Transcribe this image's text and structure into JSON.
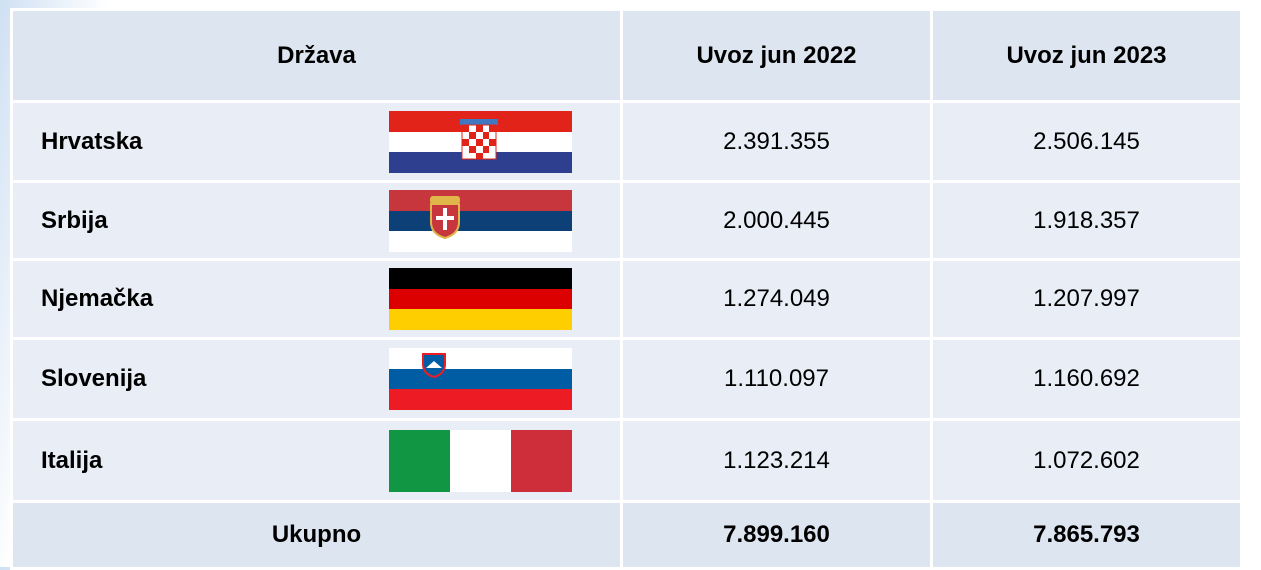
{
  "table": {
    "header": [
      "Država",
      "Uvoz jun 2022",
      "Uvoz jun 2023"
    ],
    "rows": [
      [
        "Hrvatska",
        "2.391.355",
        "2.506.145"
      ],
      [
        "Srbija",
        "2.000.445",
        "1.918.357"
      ],
      [
        "Njemačka",
        "1.274.049",
        "1.207.997"
      ],
      [
        "Slovenija",
        "1.110.097",
        "1.160.692"
      ],
      [
        "Italija",
        "1.123.214",
        "1.072.602"
      ]
    ],
    "total": [
      "Ukupno",
      "7.899.160",
      "7.865.793"
    ]
  }
}
